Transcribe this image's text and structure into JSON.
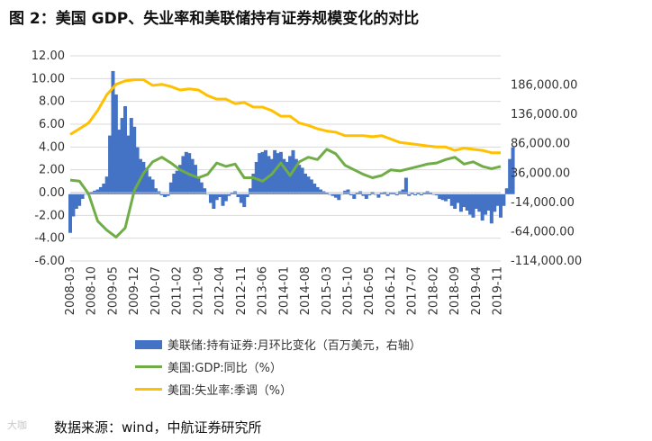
{
  "figure_title": "图 2：美国 GDP、失业率和美联储持有证券规模变化的对比",
  "source": "数据来源：wind，中航证券研究所",
  "watermark": "大咖",
  "colors": {
    "bars": "#4472C4",
    "gdp": "#70AD47",
    "unemployment": "#FFC000",
    "grid": "#d9d9d9"
  },
  "chart_data": {
    "type": "bar+line",
    "left_axis": {
      "ylim": [
        -6,
        12
      ],
      "ticks": [
        "12.00",
        "10.00",
        "8.00",
        "6.00",
        "4.00",
        "2.00",
        "0.00",
        "-2.00",
        "-4.00",
        "-6.00"
      ]
    },
    "right_axis": {
      "ylim": [
        -114000,
        236000
      ],
      "ticks": [
        "186,000.00",
        "136,000.00",
        "86,000.00",
        "36,000.00",
        "-14,000.00",
        "-64,000.00",
        "-114,000.00"
      ]
    },
    "x_range": [
      "2008-03",
      "2019-12"
    ],
    "x_tick_labels": [
      "2008-03",
      "2008-10",
      "2009-05",
      "2009-12",
      "2010-07",
      "2011-02",
      "2011-09",
      "2012-04",
      "2012-11",
      "2013-06",
      "2014-01",
      "2014-08",
      "2015-03",
      "2015-10",
      "2016-05",
      "2016-12",
      "2017-07",
      "2018-02",
      "2018-09",
      "2019-04",
      "2019-11"
    ],
    "legend": [
      "美联储:持有证券:月环比变化（百万美元，右轴）",
      "美国:GDP:同比（%）",
      "美国:失业率:季调（%）"
    ],
    "series_fed": {
      "name": "美联储:持有证券:月环比变化（百万美元，右轴）",
      "axis": "right",
      "start": "2008-03",
      "frequency": "monthly",
      "values": [
        -66000,
        -38000,
        -25000,
        -20000,
        -8000,
        0,
        2000,
        4000,
        6000,
        8000,
        12000,
        18000,
        30000,
        100000,
        210000,
        170000,
        110000,
        130000,
        150000,
        100000,
        130000,
        115000,
        80000,
        60000,
        55000,
        45000,
        30000,
        25000,
        10000,
        5000,
        -2000,
        -5000,
        -3000,
        20000,
        35000,
        40000,
        50000,
        65000,
        72000,
        70000,
        60000,
        50000,
        30000,
        20000,
        10000,
        0,
        -15000,
        -25000,
        -10000,
        -5000,
        -20000,
        -12000,
        -3000,
        2000,
        5000,
        -5000,
        -15000,
        -22000,
        -5000,
        10000,
        35000,
        55000,
        70000,
        72000,
        75000,
        65000,
        60000,
        75000,
        70000,
        72000,
        60000,
        55000,
        65000,
        75000,
        60000,
        50000,
        45000,
        35000,
        30000,
        25000,
        18000,
        12000,
        8000,
        5000,
        2000,
        -1000,
        -3000,
        -6000,
        -10000,
        0,
        6000,
        8000,
        -2000,
        -8000,
        3000,
        5000,
        -3000,
        -8000,
        -2000,
        4000,
        -1000,
        -6000,
        2000,
        4000,
        -3000,
        2000,
        3000,
        -2000,
        5000,
        8000,
        28000,
        -3000,
        2000,
        -2000,
        3000,
        -2000,
        2000,
        5000,
        3000,
        -1000,
        -2000,
        -8000,
        -10000,
        -12000,
        -8000,
        -20000,
        -25000,
        -15000,
        -30000,
        -22000,
        -28000,
        -35000,
        -40000,
        -25000,
        -30000,
        -45000,
        -35000,
        -28000,
        -50000,
        -30000,
        -20000,
        -40000,
        -20000,
        10000,
        60000,
        80000
      ]
    },
    "series_gdp": {
      "name": "美国:GDP:同比（%）",
      "axis": "left",
      "points": [
        [
          "2008-03",
          1.1
        ],
        [
          "2008-06",
          1.0
        ],
        [
          "2008-09",
          -0.1
        ],
        [
          "2008-12",
          -2.5
        ],
        [
          "2009-03",
          -3.3
        ],
        [
          "2009-06",
          -3.9
        ],
        [
          "2009-09",
          -3.1
        ],
        [
          "2009-12",
          0.2
        ],
        [
          "2010-03",
          1.7
        ],
        [
          "2010-06",
          2.7
        ],
        [
          "2010-09",
          3.1
        ],
        [
          "2010-12",
          2.6
        ],
        [
          "2011-03",
          2.0
        ],
        [
          "2011-06",
          1.6
        ],
        [
          "2011-09",
          1.3
        ],
        [
          "2011-12",
          1.6
        ],
        [
          "2012-03",
          2.6
        ],
        [
          "2012-06",
          2.3
        ],
        [
          "2012-09",
          2.5
        ],
        [
          "2012-12",
          1.3
        ],
        [
          "2013-03",
          1.3
        ],
        [
          "2013-06",
          1.0
        ],
        [
          "2013-09",
          1.6
        ],
        [
          "2013-12",
          2.6
        ],
        [
          "2014-03",
          1.5
        ],
        [
          "2014-06",
          2.7
        ],
        [
          "2014-09",
          3.1
        ],
        [
          "2014-12",
          2.9
        ],
        [
          "2015-03",
          3.8
        ],
        [
          "2015-06",
          3.4
        ],
        [
          "2015-09",
          2.4
        ],
        [
          "2015-12",
          2.0
        ],
        [
          "2016-03",
          1.6
        ],
        [
          "2016-06",
          1.3
        ],
        [
          "2016-09",
          1.5
        ],
        [
          "2016-12",
          2.0
        ],
        [
          "2017-03",
          1.9
        ],
        [
          "2017-06",
          2.1
        ],
        [
          "2017-09",
          2.3
        ],
        [
          "2017-12",
          2.5
        ],
        [
          "2018-03",
          2.6
        ],
        [
          "2018-06",
          2.9
        ],
        [
          "2018-09",
          3.1
        ],
        [
          "2018-12",
          2.5
        ],
        [
          "2019-03",
          2.7
        ],
        [
          "2019-06",
          2.3
        ],
        [
          "2019-09",
          2.1
        ],
        [
          "2019-12",
          2.3
        ]
      ]
    },
    "series_unemployment": {
      "name": "美国:失业率:季调（%）",
      "axis": "left",
      "points": [
        [
          "2008-03",
          5.1
        ],
        [
          "2008-06",
          5.6
        ],
        [
          "2008-09",
          6.1
        ],
        [
          "2008-12",
          7.2
        ],
        [
          "2009-03",
          8.6
        ],
        [
          "2009-06",
          9.5
        ],
        [
          "2009-09",
          9.8
        ],
        [
          "2009-12",
          9.9
        ],
        [
          "2010-03",
          9.9
        ],
        [
          "2010-06",
          9.4
        ],
        [
          "2010-09",
          9.5
        ],
        [
          "2010-12",
          9.3
        ],
        [
          "2011-03",
          9.0
        ],
        [
          "2011-06",
          9.1
        ],
        [
          "2011-09",
          9.0
        ],
        [
          "2011-12",
          8.5
        ],
        [
          "2012-03",
          8.2
        ],
        [
          "2012-06",
          8.2
        ],
        [
          "2012-09",
          7.8
        ],
        [
          "2012-12",
          7.9
        ],
        [
          "2013-03",
          7.5
        ],
        [
          "2013-06",
          7.5
        ],
        [
          "2013-09",
          7.2
        ],
        [
          "2013-12",
          6.7
        ],
        [
          "2014-03",
          6.7
        ],
        [
          "2014-06",
          6.1
        ],
        [
          "2014-09",
          5.9
        ],
        [
          "2014-12",
          5.6
        ],
        [
          "2015-03",
          5.4
        ],
        [
          "2015-06",
          5.3
        ],
        [
          "2015-09",
          5.0
        ],
        [
          "2015-12",
          5.0
        ],
        [
          "2016-03",
          5.0
        ],
        [
          "2016-06",
          4.9
        ],
        [
          "2016-09",
          5.0
        ],
        [
          "2016-12",
          4.7
        ],
        [
          "2017-03",
          4.4
        ],
        [
          "2017-06",
          4.3
        ],
        [
          "2017-09",
          4.2
        ],
        [
          "2017-12",
          4.1
        ],
        [
          "2018-03",
          4.0
        ],
        [
          "2018-06",
          4.0
        ],
        [
          "2018-09",
          3.7
        ],
        [
          "2018-12",
          3.9
        ],
        [
          "2019-03",
          3.8
        ],
        [
          "2019-06",
          3.7
        ],
        [
          "2019-09",
          3.5
        ],
        [
          "2019-12",
          3.5
        ]
      ]
    }
  }
}
